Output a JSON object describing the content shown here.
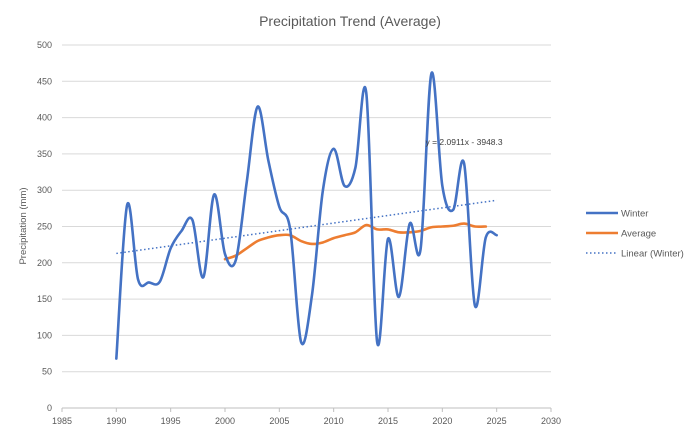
{
  "chart_data": {
    "type": "line",
    "title": "Precipitation Trend (Average)",
    "xlabel": "",
    "ylabel": "Precipitation (mm)",
    "xlim": [
      1985,
      2030
    ],
    "ylim": [
      0,
      500
    ],
    "xticks": [
      1985,
      1990,
      1995,
      2000,
      2005,
      2010,
      2015,
      2020,
      2025,
      2030
    ],
    "yticks": [
      0,
      50,
      100,
      150,
      200,
      250,
      300,
      350,
      400,
      450,
      500
    ],
    "grid": "horizontal",
    "legend_position": "right",
    "series": [
      {
        "name": "Winter",
        "color": "#4472C4",
        "style": "solid-smooth",
        "x": [
          1990,
          1991,
          1992,
          1993,
          1994,
          1995,
          1996,
          1997,
          1998,
          1999,
          2000,
          2001,
          2002,
          2003,
          2004,
          2005,
          2006,
          2007,
          2008,
          2009,
          2010,
          2011,
          2012,
          2013,
          2014,
          2015,
          2016,
          2017,
          2018,
          2019,
          2020,
          2021,
          2022,
          2023,
          2024,
          2025
        ],
        "y": [
          68,
          280,
          177,
          173,
          174,
          220,
          244,
          259,
          180,
          294,
          212,
          204,
          311,
          415,
          340,
          277,
          246,
          91,
          155,
          299,
          357,
          306,
          331,
          434,
          91,
          233,
          153,
          254,
          219,
          461,
          306,
          273,
          337,
          141,
          235,
          238
        ]
      },
      {
        "name": "Average",
        "color": "#ED7D31",
        "style": "solid-smooth",
        "x": [
          2000,
          2001,
          2002,
          2003,
          2004,
          2005,
          2006,
          2007,
          2008,
          2009,
          2010,
          2011,
          2012,
          2013,
          2014,
          2015,
          2016,
          2017,
          2018,
          2019,
          2020,
          2021,
          2022,
          2023,
          2024
        ],
        "y": [
          205,
          210,
          220,
          230,
          235,
          238,
          238,
          230,
          226,
          228,
          234,
          238,
          242,
          252,
          246,
          246,
          242,
          242,
          244,
          249,
          250,
          251,
          254,
          250,
          250
        ]
      },
      {
        "name": "Linear (Winter)",
        "color": "#4472C4",
        "style": "dotted",
        "x": [
          1990,
          2025
        ],
        "y": [
          212.9,
          286.1
        ]
      }
    ],
    "annotations": [
      {
        "text": "y = 2.0911x - 3948.3",
        "x": 2022,
        "y": 362
      }
    ]
  }
}
